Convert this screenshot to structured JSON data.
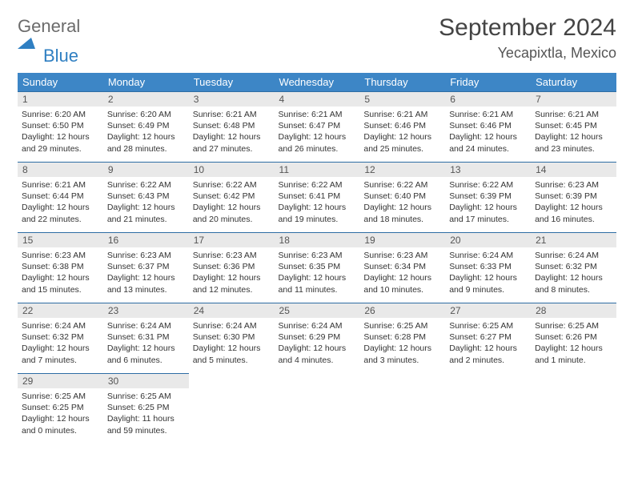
{
  "logo": {
    "general": "General",
    "blue": "Blue"
  },
  "title": "September 2024",
  "location": "Yecapixtla, Mexico",
  "colors": {
    "header_bg": "#3d86c6",
    "header_text": "#ffffff",
    "row_border": "#2e6da4",
    "daynum_bg": "#e9e9e9",
    "logo_gray": "#6b6b6b",
    "logo_blue": "#2f7fc2"
  },
  "weekday_labels": [
    "Sunday",
    "Monday",
    "Tuesday",
    "Wednesday",
    "Thursday",
    "Friday",
    "Saturday"
  ],
  "weeks": [
    [
      {
        "n": "1",
        "sr": "Sunrise: 6:20 AM",
        "ss": "Sunset: 6:50 PM",
        "d1": "Daylight: 12 hours",
        "d2": "and 29 minutes."
      },
      {
        "n": "2",
        "sr": "Sunrise: 6:20 AM",
        "ss": "Sunset: 6:49 PM",
        "d1": "Daylight: 12 hours",
        "d2": "and 28 minutes."
      },
      {
        "n": "3",
        "sr": "Sunrise: 6:21 AM",
        "ss": "Sunset: 6:48 PM",
        "d1": "Daylight: 12 hours",
        "d2": "and 27 minutes."
      },
      {
        "n": "4",
        "sr": "Sunrise: 6:21 AM",
        "ss": "Sunset: 6:47 PM",
        "d1": "Daylight: 12 hours",
        "d2": "and 26 minutes."
      },
      {
        "n": "5",
        "sr": "Sunrise: 6:21 AM",
        "ss": "Sunset: 6:46 PM",
        "d1": "Daylight: 12 hours",
        "d2": "and 25 minutes."
      },
      {
        "n": "6",
        "sr": "Sunrise: 6:21 AM",
        "ss": "Sunset: 6:46 PM",
        "d1": "Daylight: 12 hours",
        "d2": "and 24 minutes."
      },
      {
        "n": "7",
        "sr": "Sunrise: 6:21 AM",
        "ss": "Sunset: 6:45 PM",
        "d1": "Daylight: 12 hours",
        "d2": "and 23 minutes."
      }
    ],
    [
      {
        "n": "8",
        "sr": "Sunrise: 6:21 AM",
        "ss": "Sunset: 6:44 PM",
        "d1": "Daylight: 12 hours",
        "d2": "and 22 minutes."
      },
      {
        "n": "9",
        "sr": "Sunrise: 6:22 AM",
        "ss": "Sunset: 6:43 PM",
        "d1": "Daylight: 12 hours",
        "d2": "and 21 minutes."
      },
      {
        "n": "10",
        "sr": "Sunrise: 6:22 AM",
        "ss": "Sunset: 6:42 PM",
        "d1": "Daylight: 12 hours",
        "d2": "and 20 minutes."
      },
      {
        "n": "11",
        "sr": "Sunrise: 6:22 AM",
        "ss": "Sunset: 6:41 PM",
        "d1": "Daylight: 12 hours",
        "d2": "and 19 minutes."
      },
      {
        "n": "12",
        "sr": "Sunrise: 6:22 AM",
        "ss": "Sunset: 6:40 PM",
        "d1": "Daylight: 12 hours",
        "d2": "and 18 minutes."
      },
      {
        "n": "13",
        "sr": "Sunrise: 6:22 AM",
        "ss": "Sunset: 6:39 PM",
        "d1": "Daylight: 12 hours",
        "d2": "and 17 minutes."
      },
      {
        "n": "14",
        "sr": "Sunrise: 6:23 AM",
        "ss": "Sunset: 6:39 PM",
        "d1": "Daylight: 12 hours",
        "d2": "and 16 minutes."
      }
    ],
    [
      {
        "n": "15",
        "sr": "Sunrise: 6:23 AM",
        "ss": "Sunset: 6:38 PM",
        "d1": "Daylight: 12 hours",
        "d2": "and 15 minutes."
      },
      {
        "n": "16",
        "sr": "Sunrise: 6:23 AM",
        "ss": "Sunset: 6:37 PM",
        "d1": "Daylight: 12 hours",
        "d2": "and 13 minutes."
      },
      {
        "n": "17",
        "sr": "Sunrise: 6:23 AM",
        "ss": "Sunset: 6:36 PM",
        "d1": "Daylight: 12 hours",
        "d2": "and 12 minutes."
      },
      {
        "n": "18",
        "sr": "Sunrise: 6:23 AM",
        "ss": "Sunset: 6:35 PM",
        "d1": "Daylight: 12 hours",
        "d2": "and 11 minutes."
      },
      {
        "n": "19",
        "sr": "Sunrise: 6:23 AM",
        "ss": "Sunset: 6:34 PM",
        "d1": "Daylight: 12 hours",
        "d2": "and 10 minutes."
      },
      {
        "n": "20",
        "sr": "Sunrise: 6:24 AM",
        "ss": "Sunset: 6:33 PM",
        "d1": "Daylight: 12 hours",
        "d2": "and 9 minutes."
      },
      {
        "n": "21",
        "sr": "Sunrise: 6:24 AM",
        "ss": "Sunset: 6:32 PM",
        "d1": "Daylight: 12 hours",
        "d2": "and 8 minutes."
      }
    ],
    [
      {
        "n": "22",
        "sr": "Sunrise: 6:24 AM",
        "ss": "Sunset: 6:32 PM",
        "d1": "Daylight: 12 hours",
        "d2": "and 7 minutes."
      },
      {
        "n": "23",
        "sr": "Sunrise: 6:24 AM",
        "ss": "Sunset: 6:31 PM",
        "d1": "Daylight: 12 hours",
        "d2": "and 6 minutes."
      },
      {
        "n": "24",
        "sr": "Sunrise: 6:24 AM",
        "ss": "Sunset: 6:30 PM",
        "d1": "Daylight: 12 hours",
        "d2": "and 5 minutes."
      },
      {
        "n": "25",
        "sr": "Sunrise: 6:24 AM",
        "ss": "Sunset: 6:29 PM",
        "d1": "Daylight: 12 hours",
        "d2": "and 4 minutes."
      },
      {
        "n": "26",
        "sr": "Sunrise: 6:25 AM",
        "ss": "Sunset: 6:28 PM",
        "d1": "Daylight: 12 hours",
        "d2": "and 3 minutes."
      },
      {
        "n": "27",
        "sr": "Sunrise: 6:25 AM",
        "ss": "Sunset: 6:27 PM",
        "d1": "Daylight: 12 hours",
        "d2": "and 2 minutes."
      },
      {
        "n": "28",
        "sr": "Sunrise: 6:25 AM",
        "ss": "Sunset: 6:26 PM",
        "d1": "Daylight: 12 hours",
        "d2": "and 1 minute."
      }
    ],
    [
      {
        "n": "29",
        "sr": "Sunrise: 6:25 AM",
        "ss": "Sunset: 6:25 PM",
        "d1": "Daylight: 12 hours",
        "d2": "and 0 minutes."
      },
      {
        "n": "30",
        "sr": "Sunrise: 6:25 AM",
        "ss": "Sunset: 6:25 PM",
        "d1": "Daylight: 11 hours",
        "d2": "and 59 minutes."
      },
      null,
      null,
      null,
      null,
      null
    ]
  ]
}
